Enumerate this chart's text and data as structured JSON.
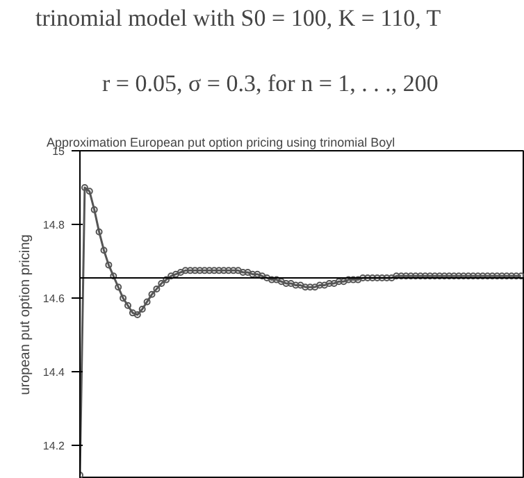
{
  "chart_data": {
    "type": "line",
    "title": "Approximation European put option pricing using trinomial Boyl",
    "ylabel": "uropean put option pricing",
    "annotations": [
      "trinomial model with S0 = 100, K = 110, T",
      "r = 0.05, σ = 0.3, for n = 1, . . ., 200"
    ],
    "categories": [
      null,
      null,
      null,
      null,
      null,
      null,
      null,
      null,
      null,
      null,
      null,
      null,
      null,
      null,
      null,
      null,
      null,
      null,
      null,
      null,
      null,
      null,
      null,
      null,
      null,
      null,
      null,
      null,
      null,
      null,
      null,
      null,
      null,
      null,
      null,
      null,
      null,
      null,
      null,
      null,
      null,
      null,
      null,
      null,
      null,
      null,
      null,
      null,
      null,
      null,
      null,
      null,
      null,
      null,
      null,
      null,
      null,
      null,
      null,
      null,
      null,
      null,
      null,
      null,
      null,
      null,
      null,
      null,
      null,
      null,
      null,
      null,
      null,
      null,
      null,
      null,
      null,
      null,
      null,
      null,
      null,
      null,
      null,
      null,
      null,
      null,
      null,
      null,
      null,
      null,
      null,
      null,
      null
    ],
    "series": [
      {
        "color": "#555555",
        "values": [
          14.12,
          14.9,
          14.89,
          14.84,
          14.78,
          14.73,
          14.69,
          14.66,
          14.63,
          14.6,
          14.58,
          14.56,
          14.555,
          14.57,
          14.59,
          14.61,
          14.625,
          14.64,
          14.65,
          14.66,
          14.665,
          14.67,
          14.675,
          14.675,
          14.675,
          14.675,
          14.675,
          14.675,
          14.675,
          14.675,
          14.675,
          14.675,
          14.675,
          14.675,
          14.67,
          14.67,
          14.665,
          14.665,
          14.66,
          14.655,
          14.65,
          14.65,
          14.645,
          14.64,
          14.64,
          14.635,
          14.635,
          14.63,
          14.63,
          14.63,
          14.635,
          14.635,
          14.64,
          14.64,
          14.645,
          14.645,
          14.65,
          14.65,
          14.65,
          14.655,
          14.655,
          14.655,
          14.655,
          14.655,
          14.655,
          14.655,
          14.66,
          14.66,
          14.66,
          14.66,
          14.66,
          14.66,
          14.66,
          14.66,
          14.66,
          14.66,
          14.66,
          14.66,
          14.66,
          14.66,
          14.66,
          14.66,
          14.66,
          14.66,
          14.66,
          14.66,
          14.66,
          14.66,
          14.66,
          14.66,
          14.66,
          14.66,
          14.66
        ]
      }
    ],
    "ylim": [
      14.11,
      15
    ],
    "yticks": [
      14.2,
      14.4,
      14.6,
      14.8,
      15
    ],
    "ref_lines": [
      {
        "axis": "y",
        "value": 14.655,
        "color": "#000000"
      }
    ],
    "grid": false,
    "marker": "circle",
    "line_style": "solid"
  }
}
